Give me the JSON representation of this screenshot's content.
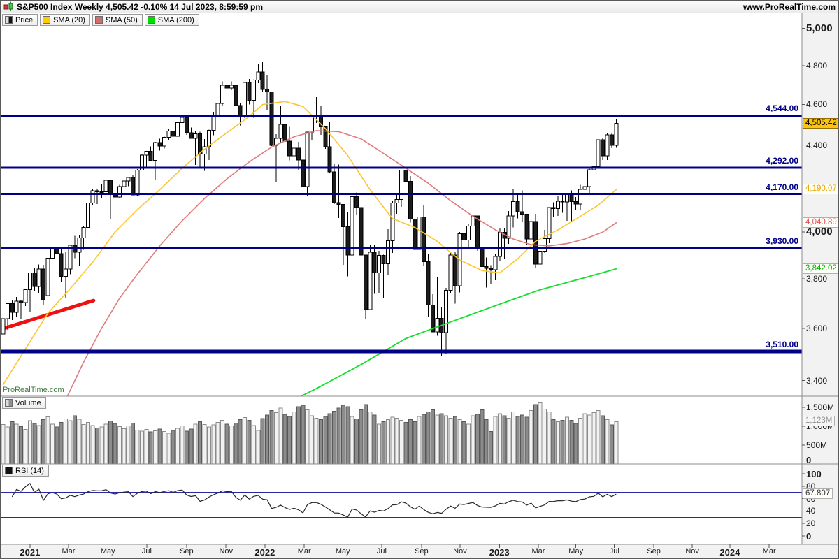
{
  "header": {
    "title": "S&P500 Index Weekly 4,505.42 -0.10% 14 Jul 2023, 8:59:59 pm",
    "url": "www.ProRealTime.com"
  },
  "legend": {
    "items": [
      {
        "label": "Price"
      },
      {
        "label": "SMA (20)"
      },
      {
        "label": "SMA (50)"
      },
      {
        "label": "SMA (200)"
      }
    ],
    "volume_label": "Volume",
    "rsi_label": "RSI (14)"
  },
  "watermark": "ProRealTime.com",
  "colors": {
    "up": "#ffffff",
    "down": "#1c1c1c",
    "candle_stroke": "#000000",
    "sma20": "#fdc62e",
    "sma50": "#e07b7b",
    "sma200": "#16dd2e",
    "level": "#000087",
    "trend": "#ee1111",
    "volume_up": "#f2f2f2",
    "volume_down": "#8c8c8c",
    "volume_stroke_up": "#8a8a8a",
    "volume_stroke_down": "#585858",
    "rsi": "#26262d",
    "rsi_level": "#2929a3",
    "sma20_text": "#e7a500",
    "sma50_text": "#e05555",
    "sma200_text": "#00b400",
    "volume_badge_text": "#909090",
    "rsi_badge_text": "#333333"
  },
  "chart_data": {
    "type": "candlestick",
    "title": "S&P500 Index Weekly",
    "log_scale": true,
    "price_ylim": [
      3342,
      5083
    ],
    "volume_ylim": [
      0,
      1800
    ],
    "rsi_ylim": [
      0,
      100
    ],
    "last_price": 4505.42,
    "ohlc": [
      [
        3578,
        3644,
        3552,
        3638
      ],
      [
        3638,
        3700,
        3594,
        3699
      ],
      [
        3699,
        3712,
        3633,
        3663
      ],
      [
        3663,
        3726,
        3645,
        3709
      ],
      [
        3709,
        3711,
        3636,
        3703
      ],
      [
        3703,
        3760,
        3689,
        3756
      ],
      [
        3756,
        3826,
        3663,
        3825
      ],
      [
        3825,
        3844,
        3749,
        3768
      ],
      [
        3768,
        3861,
        3743,
        3841
      ],
      [
        3841,
        3859,
        3694,
        3714
      ],
      [
        3731,
        3894,
        3725,
        3887
      ],
      [
        3887,
        3937,
        3885,
        3935
      ],
      [
        3935,
        3950,
        3885,
        3907
      ],
      [
        3907,
        3928,
        3789,
        3811
      ],
      [
        3811,
        3914,
        3723,
        3842
      ],
      [
        3842,
        3944,
        3819,
        3943
      ],
      [
        3943,
        3984,
        3887,
        3913
      ],
      [
        3913,
        3985,
        3854,
        3975
      ],
      [
        3975,
        4025,
        3923,
        4020
      ],
      [
        4020,
        4131,
        4015,
        4129
      ],
      [
        4129,
        4191,
        4118,
        4185
      ],
      [
        4185,
        4194,
        4124,
        4180
      ],
      [
        4180,
        4218,
        4154,
        4181
      ],
      [
        4181,
        4238,
        4129,
        4233
      ],
      [
        4233,
        4236,
        4057,
        4174
      ],
      [
        4174,
        4209,
        4061,
        4156
      ],
      [
        4156,
        4213,
        4153,
        4204
      ],
      [
        4204,
        4238,
        4168,
        4230
      ],
      [
        4230,
        4249,
        4206,
        4247
      ],
      [
        4247,
        4258,
        4164,
        4166
      ],
      [
        4166,
        4286,
        4159,
        4281
      ],
      [
        4281,
        4355,
        4279,
        4352
      ],
      [
        4352,
        4372,
        4289,
        4370
      ],
      [
        4370,
        4394,
        4322,
        4327
      ],
      [
        4327,
        4415,
        4234,
        4412
      ],
      [
        4412,
        4430,
        4373,
        4395
      ],
      [
        4395,
        4441,
        4384,
        4437
      ],
      [
        4437,
        4476,
        4424,
        4468
      ],
      [
        4468,
        4481,
        4368,
        4442
      ],
      [
        4442,
        4514,
        4441,
        4509
      ],
      [
        4509,
        4546,
        4493,
        4535
      ],
      [
        4535,
        4536,
        4450,
        4459
      ],
      [
        4459,
        4486,
        4436,
        4433
      ],
      [
        4433,
        4466,
        4306,
        4455
      ],
      [
        4455,
        4465,
        4288,
        4357
      ],
      [
        4357,
        4429,
        4278,
        4391
      ],
      [
        4391,
        4475,
        4329,
        4471
      ],
      [
        4471,
        4559,
        4447,
        4545
      ],
      [
        4545,
        4608,
        4537,
        4605
      ],
      [
        4605,
        4718,
        4595,
        4698
      ],
      [
        4698,
        4714,
        4630,
        4683
      ],
      [
        4683,
        4717,
        4672,
        4698
      ],
      [
        4698,
        4744,
        4585,
        4595
      ],
      [
        4595,
        4609,
        4495,
        4538
      ],
      [
        4538,
        4713,
        4531,
        4712
      ],
      [
        4712,
        4731,
        4600,
        4621
      ],
      [
        4621,
        4729,
        4531,
        4725
      ],
      [
        4725,
        4808,
        4708,
        4766
      ],
      [
        4766,
        4818,
        4662,
        4677
      ],
      [
        4677,
        4748,
        4573,
        4663
      ],
      [
        4663,
        4663,
        4395,
        4398
      ],
      [
        4398,
        4453,
        4223,
        4432
      ],
      [
        4432,
        4595,
        4414,
        4501
      ],
      [
        4501,
        4590,
        4401,
        4419
      ],
      [
        4419,
        4489,
        4327,
        4349
      ],
      [
        4349,
        4385,
        4115,
        4385
      ],
      [
        4385,
        4416,
        4279,
        4329
      ],
      [
        4329,
        4347,
        4158,
        4204
      ],
      [
        4204,
        4465,
        4162,
        4463
      ],
      [
        4463,
        4546,
        4424,
        4543
      ],
      [
        4543,
        4637,
        4507,
        4546
      ],
      [
        4546,
        4593,
        4450,
        4488
      ],
      [
        4488,
        4488,
        4381,
        4392
      ],
      [
        4392,
        4512,
        4267,
        4272
      ],
      [
        4272,
        4308,
        4124,
        4131
      ],
      [
        4131,
        4307,
        4062,
        4123
      ],
      [
        4123,
        4123,
        3859,
        4024
      ],
      [
        4024,
        4090,
        3810,
        3901
      ],
      [
        3901,
        4158,
        3875,
        4158
      ],
      [
        4158,
        4177,
        4074,
        4109
      ],
      [
        4109,
        4168,
        3900,
        3901
      ],
      [
        3901,
        3901,
        3636,
        3675
      ],
      [
        3675,
        3945,
        3672,
        3912
      ],
      [
        3912,
        3946,
        3738,
        3825
      ],
      [
        3825,
        3918,
        3742,
        3899
      ],
      [
        3899,
        3902,
        3721,
        3863
      ],
      [
        3863,
        4012,
        3818,
        3962
      ],
      [
        3962,
        4140,
        3910,
        4130
      ],
      [
        4130,
        4167,
        4080,
        4145
      ],
      [
        4145,
        4280,
        4112,
        4280
      ],
      [
        4280,
        4325,
        4218,
        4228
      ],
      [
        4228,
        4253,
        4042,
        4058
      ],
      [
        4058,
        4064,
        3887,
        3924
      ],
      [
        3924,
        4119,
        3886,
        4067
      ],
      [
        4067,
        4119,
        3854,
        3873
      ],
      [
        3873,
        3907,
        3647,
        3693
      ],
      [
        3693,
        3737,
        3585,
        3586
      ],
      [
        3586,
        3807,
        3571,
        3640
      ],
      [
        3640,
        3685,
        3491,
        3583
      ],
      [
        3583,
        3763,
        3502,
        3753
      ],
      [
        3753,
        3913,
        3741,
        3901
      ],
      [
        3901,
        3912,
        3698,
        3771
      ],
      [
        3771,
        4001,
        3744,
        3993
      ],
      [
        3993,
        4028,
        3906,
        3965
      ],
      [
        3965,
        4034,
        3937,
        4026
      ],
      [
        4026,
        4101,
        3938,
        4072
      ],
      [
        4072,
        4072,
        3918,
        3934
      ],
      [
        3934,
        4101,
        3827,
        3852
      ],
      [
        3852,
        3890,
        3764,
        3845
      ],
      [
        3845,
        3857,
        3780,
        3839
      ],
      [
        3839,
        3906,
        3794,
        3895
      ],
      [
        3895,
        4015,
        3877,
        3999
      ],
      [
        3999,
        4019,
        3885,
        3973
      ],
      [
        3973,
        4094,
        3949,
        4071
      ],
      [
        4071,
        4195,
        4020,
        4136
      ],
      [
        4136,
        4176,
        4060,
        4090
      ],
      [
        4090,
        4186,
        4047,
        4079
      ],
      [
        4079,
        4079,
        3943,
        3970
      ],
      [
        3970,
        4078,
        3928,
        4046
      ],
      [
        4046,
        4080,
        3846,
        3862
      ],
      [
        3862,
        3937,
        3809,
        3917
      ],
      [
        3917,
        4010,
        3909,
        3971
      ],
      [
        3971,
        4110,
        3951,
        4109
      ],
      [
        4109,
        4133,
        4069,
        4105
      ],
      [
        4105,
        4163,
        4072,
        4138
      ],
      [
        4138,
        4169,
        4086,
        4134
      ],
      [
        4134,
        4170,
        4049,
        4169
      ],
      [
        4169,
        4186,
        4048,
        4136
      ],
      [
        4136,
        4157,
        4099,
        4124
      ],
      [
        4124,
        4212,
        4098,
        4192
      ],
      [
        4192,
        4231,
        4103,
        4205
      ],
      [
        4205,
        4290,
        4166,
        4282
      ],
      [
        4282,
        4322,
        4263,
        4299
      ],
      [
        4299,
        4448,
        4293,
        4426
      ],
      [
        4426,
        4432,
        4328,
        4348
      ],
      [
        4348,
        4458,
        4328,
        4450
      ],
      [
        4450,
        4456,
        4385,
        4399
      ],
      [
        4399,
        4527,
        4386,
        4505.42
      ]
    ],
    "volume_m": [
      1050,
      980,
      1120,
      1060,
      990,
      920,
      1150,
      1080,
      1020,
      1180,
      1250,
      1060,
      980,
      1100,
      1200,
      1150,
      1280,
      1190,
      1050,
      1100,
      1020,
      960,
      980,
      1060,
      1140,
      1080,
      990,
      940,
      1010,
      1090,
      900,
      870,
      920,
      850,
      880,
      930,
      860,
      820,
      890,
      950,
      1010,
      870,
      930,
      1060,
      1120,
      1050,
      980,
      1040,
      1100,
      1160,
      1060,
      1010,
      1090,
      1180,
      1230,
      1160,
      1020,
      890,
      1210,
      1300,
      1420,
      1360,
      1480,
      1320,
      1260,
      1380,
      1520,
      1560,
      1440,
      1280,
      1220,
      1180,
      1260,
      1340,
      1400,
      1480,
      1560,
      1520,
      1260,
      1200,
      1440,
      1580,
      1380,
      1300,
      1060,
      1120,
      1180,
      1240,
      1220,
      1160,
      1100,
      1180,
      1120,
      1260,
      1320,
      1380,
      1440,
      1300,
      1340,
      1280,
      1220,
      1260,
      1180,
      1120,
      1060,
      1280,
      1320,
      1440,
      1180,
      860,
      1260,
      1340,
      1280,
      1220,
      1380,
      1260,
      1300,
      1240,
      1420,
      1580,
      1620,
      1460,
      1380,
      1180,
      1120,
      1160,
      1240,
      1160,
      1080,
      1220,
      1340,
      1300,
      1360,
      1420,
      1280,
      1180,
      1040,
      1123
    ],
    "sma20_points": [
      [
        0,
        3385
      ],
      [
        5,
        3520
      ],
      [
        10,
        3660
      ],
      [
        15,
        3760
      ],
      [
        20,
        3870
      ],
      [
        25,
        4000
      ],
      [
        30,
        4100
      ],
      [
        35,
        4190
      ],
      [
        40,
        4290
      ],
      [
        45,
        4380
      ],
      [
        50,
        4460
      ],
      [
        55,
        4540
      ],
      [
        58,
        4600
      ],
      [
        63,
        4615
      ],
      [
        67,
        4590
      ],
      [
        72,
        4480
      ],
      [
        77,
        4350
      ],
      [
        82,
        4190
      ],
      [
        87,
        4060
      ],
      [
        92,
        4020
      ],
      [
        97,
        3960
      ],
      [
        102,
        3880
      ],
      [
        107,
        3835
      ],
      [
        111,
        3825
      ],
      [
        115,
        3885
      ],
      [
        119,
        3960
      ],
      [
        124,
        4010
      ],
      [
        129,
        4070
      ],
      [
        133,
        4120
      ],
      [
        137,
        4190
      ]
    ],
    "sma50_points": [
      [
        14,
        3330
      ],
      [
        18,
        3470
      ],
      [
        22,
        3600
      ],
      [
        26,
        3720
      ],
      [
        30,
        3820
      ],
      [
        35,
        3940
      ],
      [
        40,
        4050
      ],
      [
        45,
        4150
      ],
      [
        50,
        4240
      ],
      [
        55,
        4320
      ],
      [
        60,
        4390
      ],
      [
        65,
        4440
      ],
      [
        70,
        4470
      ],
      [
        75,
        4465
      ],
      [
        80,
        4430
      ],
      [
        85,
        4360
      ],
      [
        90,
        4290
      ],
      [
        95,
        4220
      ],
      [
        100,
        4140
      ],
      [
        105,
        4070
      ],
      [
        110,
        4010
      ],
      [
        114,
        3970
      ],
      [
        118,
        3945
      ],
      [
        122,
        3940
      ],
      [
        126,
        3950
      ],
      [
        130,
        3970
      ],
      [
        134,
        4000
      ],
      [
        137,
        4041
      ]
    ],
    "sma200_points": [
      [
        62,
        3305
      ],
      [
        70,
        3370
      ],
      [
        80,
        3460
      ],
      [
        90,
        3560
      ],
      [
        100,
        3625
      ],
      [
        110,
        3690
      ],
      [
        120,
        3755
      ],
      [
        130,
        3805
      ],
      [
        137,
        3842
      ]
    ],
    "trendline": {
      "points": [
        [
          -0.5,
          3596
        ],
        [
          20.2,
          3711
        ]
      ],
      "width": 5
    },
    "levels": [
      {
        "price": 4544,
        "label": "4,544.00",
        "width": 3
      },
      {
        "price": 4292,
        "label": "4,292.00",
        "width": 3
      },
      {
        "price": 4170,
        "label": "4,170.00",
        "width": 3
      },
      {
        "price": 3930,
        "label": "3,930.00",
        "width": 3
      },
      {
        "price": 3510,
        "label": "3,510.00",
        "width": 5
      }
    ],
    "rsi_levels": [
      70,
      30
    ],
    "price_ticks": [
      {
        "price": 5000,
        "label": "5,000",
        "bold": true
      },
      {
        "price": 4800,
        "label": "4,800"
      },
      {
        "price": 4600,
        "label": "4,600"
      },
      {
        "price": 4400,
        "label": "4,400"
      },
      {
        "price": 4000,
        "label": "4,000",
        "bold": true
      },
      {
        "price": 3800,
        "label": "3,800"
      },
      {
        "price": 3600,
        "label": "3,600"
      },
      {
        "price": 3400,
        "label": "3,400"
      }
    ],
    "volume_ticks": [
      {
        "value": 1500,
        "label": "1,500M"
      },
      {
        "value": 1000,
        "label": "1,000M"
      },
      {
        "value": 500,
        "label": "500M"
      },
      {
        "value": 0,
        "label": "0",
        "bold": true
      }
    ],
    "rsi_ticks": [
      {
        "value": 100,
        "label": "100",
        "bold": true
      },
      {
        "value": 80,
        "label": "80"
      },
      {
        "value": 60,
        "label": "60"
      },
      {
        "value": 40,
        "label": "40"
      },
      {
        "value": 20,
        "label": "20"
      },
      {
        "value": 0,
        "label": "0",
        "bold": true
      }
    ],
    "badges": {
      "last": {
        "label": "4,505.42",
        "price": 4505.42
      },
      "sma20": {
        "label": "4,190.07",
        "price": 4190.07
      },
      "sma50": {
        "label": "4,040.89",
        "price": 4040.89
      },
      "sma200": {
        "label": "3,842.02",
        "price": 3842.02
      },
      "volume": {
        "label": "1,123M",
        "value": 1123
      },
      "rsi": {
        "label": "67.807",
        "value": 67.807
      }
    },
    "xaxis": [
      {
        "label": "2021",
        "week": 6,
        "bold": true
      },
      {
        "label": "Mar",
        "week": 14.6
      },
      {
        "label": "May",
        "week": 23.4
      },
      {
        "label": "Jul",
        "week": 32.1
      },
      {
        "label": "Sep",
        "week": 41.0
      },
      {
        "label": "Nov",
        "week": 49.8
      },
      {
        "label": "2022",
        "week": 58.5,
        "bold": true
      },
      {
        "label": "Mar",
        "week": 67.3
      },
      {
        "label": "May",
        "week": 75.9
      },
      {
        "label": "Jul",
        "week": 84.6
      },
      {
        "label": "Sep",
        "week": 93.5
      },
      {
        "label": "Nov",
        "week": 102.1
      },
      {
        "label": "2023",
        "week": 110.9,
        "bold": true
      },
      {
        "label": "Mar",
        "week": 119.6
      },
      {
        "label": "May",
        "week": 128.0
      },
      {
        "label": "Jul",
        "week": 136.6
      },
      {
        "label": "Sep",
        "week": 145.4
      },
      {
        "label": "Nov",
        "week": 154.0
      },
      {
        "label": "2024",
        "week": 162.4,
        "bold": true
      },
      {
        "label": "Mar",
        "week": 171.2
      }
    ]
  }
}
